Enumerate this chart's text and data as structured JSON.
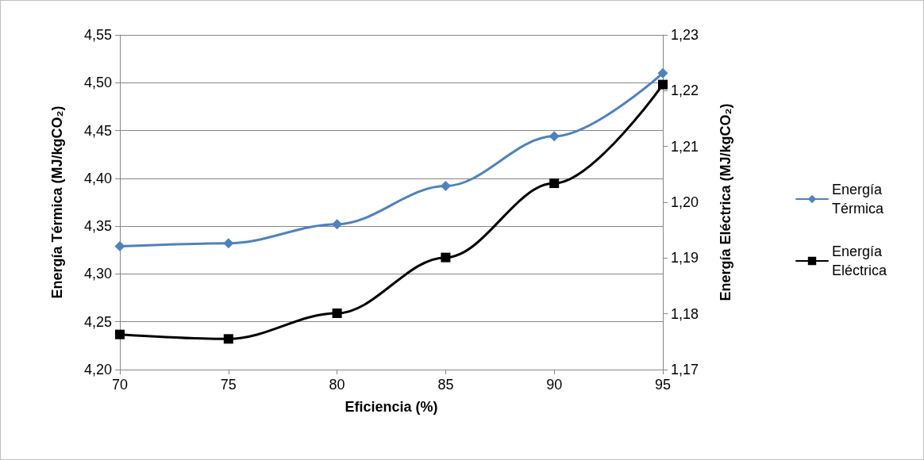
{
  "chart_data": {
    "type": "line",
    "xlabel": "Eficiencia (%)",
    "ylabel": "Energía Térmica (MJ/kgCO₂)",
    "y2label": "Energía Eléctrica (MJ/kgCO₂)",
    "x": [
      70,
      75,
      80,
      85,
      90,
      95
    ],
    "series": [
      {
        "name": "Energía Térmica",
        "color": "#4f81bd",
        "marker": "diamond",
        "values": [
          4.329,
          4.332,
          4.352,
          4.392,
          4.444,
          4.51
        ]
      },
      {
        "name": "Energía Eléctrica",
        "color": "#000000",
        "marker": "square",
        "axis": "y2",
        "values": [
          1.1763,
          1.1755,
          1.1801,
          1.1901,
          1.2034,
          1.2211
        ]
      }
    ],
    "xlim": [
      70,
      95
    ],
    "xticks": [
      70,
      75,
      80,
      85,
      90,
      95
    ],
    "ylim": [
      4.2,
      4.55
    ],
    "yticks": [
      {
        "value": 4.2,
        "label": "4,20"
      },
      {
        "value": 4.25,
        "label": "4,25"
      },
      {
        "value": 4.3,
        "label": "4,30"
      },
      {
        "value": 4.35,
        "label": "4,35"
      },
      {
        "value": 4.4,
        "label": "4,40"
      },
      {
        "value": 4.45,
        "label": "4,45"
      },
      {
        "value": 4.5,
        "label": "4,50"
      },
      {
        "value": 4.55,
        "label": "4,55"
      }
    ],
    "y2lim": [
      1.17,
      1.23
    ],
    "y2ticks": [
      {
        "value": 1.17,
        "label": "1,17"
      },
      {
        "value": 1.18,
        "label": "1,18"
      },
      {
        "value": 1.19,
        "label": "1,19"
      },
      {
        "value": 1.2,
        "label": "1,20"
      },
      {
        "value": 1.21,
        "label": "1,21"
      },
      {
        "value": 1.22,
        "label": "1,22"
      },
      {
        "value": 1.23,
        "label": "1,23"
      }
    ],
    "grid": "y",
    "legend": "right",
    "line_style": "solid"
  }
}
